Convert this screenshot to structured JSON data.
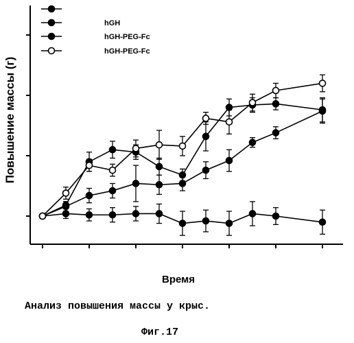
{
  "chart_data": {
    "type": "line",
    "xlabel": "Время",
    "ylabel": "Повышение массы (г)",
    "ylim": [
      0,
      1.65
    ],
    "xlim": [
      0,
      12.8
    ],
    "x": [
      0,
      1,
      2,
      3,
      4,
      5,
      6,
      7,
      8,
      9,
      10,
      12
    ],
    "grid": false,
    "legend_position": "top-left",
    "series": [
      {
        "name": "",
        "marker": "filled",
        "values": [
          0.0,
          0.02,
          0.01,
          0.01,
          0.02,
          0.02,
          -0.06,
          -0.04,
          -0.06,
          0.02,
          0.0,
          -0.05
        ],
        "errors": [
          0.0,
          0.04,
          0.05,
          0.06,
          0.06,
          0.08,
          0.1,
          0.09,
          0.1,
          0.1,
          0.07,
          0.1
        ]
      },
      {
        "name": "hGH",
        "marker": "filled",
        "values": [
          0.0,
          0.08,
          0.17,
          0.21,
          0.27,
          0.26,
          0.27,
          0.38,
          0.46,
          0.61,
          0.69,
          0.87
        ],
        "errors": [
          0.0,
          0.04,
          0.06,
          0.06,
          0.15,
          0.08,
          0.06,
          0.07,
          0.09,
          0.04,
          0.05,
          0.1
        ]
      },
      {
        "name": "hGH-PEG-Fc",
        "marker": "filled",
        "values": [
          0.0,
          0.09,
          0.45,
          0.55,
          0.53,
          0.41,
          0.34,
          0.66,
          0.9,
          0.92,
          0.93,
          0.88
        ],
        "errors": [
          0.0,
          0.03,
          0.08,
          0.07,
          0.06,
          0.07,
          0.05,
          0.12,
          0.07,
          0.06,
          0.05,
          0.1
        ]
      },
      {
        "name": "hGH-PEG-Fc",
        "marker": "open",
        "values": [
          0.0,
          0.19,
          0.42,
          0.38,
          0.56,
          0.59,
          0.58,
          0.81,
          0.78,
          0.94,
          1.04,
          1.1
        ],
        "errors": [
          0.0,
          0.05,
          0.05,
          0.05,
          0.07,
          0.12,
          0.08,
          0.05,
          0.1,
          0.07,
          0.06,
          0.07
        ]
      }
    ]
  },
  "caption": "Анализ повышения массы у крыс.",
  "figure_label": "Фиг.17"
}
